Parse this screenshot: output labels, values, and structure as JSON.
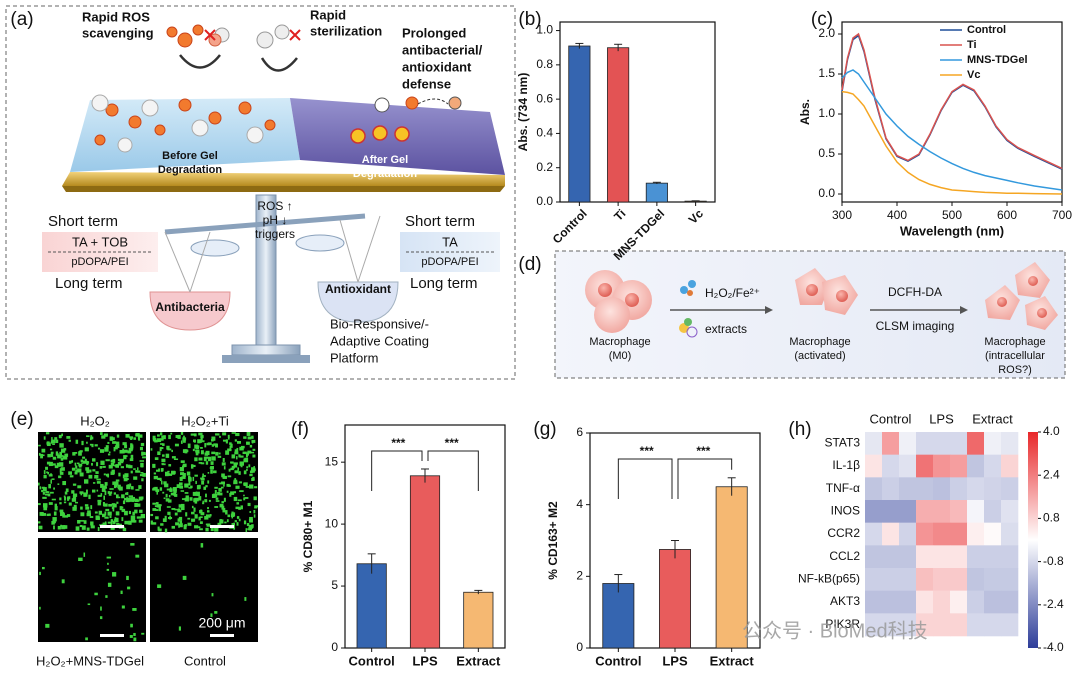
{
  "panel_labels": [
    "(a)",
    "(b)",
    "(c)",
    "(d)",
    "(e)",
    "(f)",
    "(g)",
    "(h)"
  ],
  "panel_a": {
    "top_labels": [
      [
        "Rapid ROS",
        "scavenging"
      ],
      [
        "Rapid",
        "sterilization"
      ],
      [
        "Prolonged",
        "antibacterial/",
        "antioxidant",
        "defense"
      ]
    ],
    "layer_labels": [
      [
        "Before Gel",
        "Degradation"
      ],
      [
        "After Gel",
        "Degradation"
      ]
    ],
    "left_box": {
      "short": "Short term",
      "top": "TA + TOB",
      "bottom": "pDOPA/PEI",
      "long": "Long term"
    },
    "right_box": {
      "short": "Short term",
      "top": "TA",
      "bottom": "pDOPA/PEI",
      "long": "Long term"
    },
    "triggers": [
      "ROS ↑",
      "pH ↓",
      "triggers"
    ],
    "pans": [
      "Antibacteria",
      "Antioxidant"
    ],
    "platform": [
      "Bio-Responsive/-",
      "Adaptive Coating",
      "Platform"
    ]
  },
  "panel_d": {
    "cells": [
      [
        "Macrophage",
        "(M0)"
      ],
      [
        "Macrophage",
        "(activated)"
      ],
      [
        "Macrophage",
        "(intracellular",
        "ROS?)"
      ]
    ],
    "arrow_labels": [
      [
        "H₂O₂/Fe²⁺",
        "extracts"
      ],
      [
        "DCFH-DA",
        "CLSM imaging"
      ]
    ]
  },
  "panel_e": {
    "labels": [
      "H₂O₂",
      "H₂O₂+Ti",
      "H₂O₂+MNS-TDGel",
      "Control"
    ],
    "scale_bar": "200 μm"
  },
  "watermark": "公众号 · BioMed科技",
  "chart_data": [
    {
      "type": "bar",
      "ylabel": "Abs. (734 nm)",
      "categories": [
        "Control",
        "Ti",
        "MNS-TDGel",
        "Vc"
      ],
      "values": [
        0.91,
        0.9,
        0.11,
        0.005
      ],
      "errors": [
        0.015,
        0.02,
        0.005,
        0.002
      ],
      "colors": [
        "#3565b0",
        "#e35354",
        "#4a92d4",
        "#f0a94a"
      ],
      "ylim": [
        0,
        1.05
      ],
      "yticks": [
        {
          "value": 0,
          "label": "0.0"
        },
        0.2,
        0.4,
        0.6,
        0.8,
        {
          "value": 1,
          "label": "1.0"
        }
      ]
    },
    {
      "type": "line",
      "xlabel": "Wavelength (nm)",
      "ylabel": "Abs.",
      "x": [
        300,
        310,
        320,
        330,
        340,
        360,
        380,
        400,
        420,
        440,
        460,
        480,
        500,
        520,
        540,
        560,
        580,
        600,
        620,
        650,
        700
      ],
      "series": [
        {
          "name": "Control",
          "color": "#1f4e9a",
          "values": [
            1.28,
            1.68,
            1.93,
            1.98,
            1.78,
            1.18,
            0.69,
            0.47,
            0.41,
            0.49,
            0.74,
            1.04,
            1.27,
            1.36,
            1.29,
            1.09,
            0.84,
            0.67,
            0.57,
            0.47,
            0.31
          ]
        },
        {
          "name": "Ti",
          "color": "#d9534f",
          "values": [
            1.3,
            1.7,
            1.95,
            2.0,
            1.8,
            1.2,
            0.7,
            0.48,
            0.42,
            0.5,
            0.75,
            1.05,
            1.28,
            1.37,
            1.3,
            1.1,
            0.85,
            0.68,
            0.58,
            0.48,
            0.32
          ]
        },
        {
          "name": "MNS-TDGel",
          "color": "#3399dd",
          "values": [
            1.45,
            1.52,
            1.55,
            1.5,
            1.4,
            1.2,
            1.0,
            0.85,
            0.72,
            0.62,
            0.53,
            0.45,
            0.38,
            0.32,
            0.27,
            0.23,
            0.2,
            0.17,
            0.14,
            0.1,
            0.05
          ]
        },
        {
          "name": "Vc",
          "color": "#f5a623",
          "values": [
            1.28,
            1.27,
            1.25,
            1.18,
            1.1,
            0.85,
            0.6,
            0.4,
            0.27,
            0.18,
            0.12,
            0.08,
            0.05,
            0.04,
            0.03,
            0.02,
            0.015,
            0.01,
            0.01,
            0.005,
            0
          ]
        }
      ],
      "xlim": [
        300,
        700
      ],
      "xticks": [
        300,
        400,
        500,
        600,
        700
      ],
      "ylim": [
        -0.1,
        2.15
      ],
      "yticks": [
        {
          "value": 0,
          "label": "0.0"
        },
        0.5,
        {
          "value": 1,
          "label": "1.0"
        },
        1.5,
        {
          "value": 2,
          "label": "2.0"
        }
      ],
      "legend": "upper right"
    },
    {
      "type": "bar",
      "ylabel": "% CD80+ M1",
      "categories": [
        "Control",
        "LPS",
        "Extract"
      ],
      "values": [
        6.8,
        13.9,
        4.5
      ],
      "errors": [
        0.8,
        0.55,
        0.15
      ],
      "colors": [
        "#3565b0",
        "#e85c5c",
        "#f5b872"
      ],
      "ylim": [
        0,
        18
      ],
      "yticks": [
        0,
        5,
        10,
        15
      ],
      "annotations": [
        "***",
        "***"
      ]
    },
    {
      "type": "bar",
      "ylabel": "% CD163+ M2",
      "categories": [
        "Control",
        "LPS",
        "Extract"
      ],
      "values": [
        1.8,
        2.75,
        4.5
      ],
      "errors": [
        0.25,
        0.25,
        0.25
      ],
      "colors": [
        "#3565b0",
        "#e85c5c",
        "#f5b872"
      ],
      "ylim": [
        0,
        6
      ],
      "yticks": [
        0,
        2,
        4,
        6
      ],
      "annotations": [
        "***",
        "***"
      ]
    },
    {
      "type": "heatmap",
      "groups": [
        "Control",
        "LPS",
        "Extract"
      ],
      "rows": [
        "STAT3",
        "IL-1β",
        "TNF-α",
        "INOS",
        "CCR2",
        "CCL2",
        "NF-kB(p65)",
        "AKT3",
        "PIK3R"
      ],
      "values": [
        [
          -0.5,
          1.8,
          -0.3,
          -0.8,
          -0.8,
          -0.8,
          2.8,
          -0.3,
          -0.5
        ],
        [
          0.5,
          -0.8,
          -0.6,
          2.6,
          2.0,
          1.8,
          -1.2,
          -0.8,
          0.8
        ],
        [
          -1.2,
          -1.0,
          -1.2,
          -1.2,
          -1.3,
          -1.0,
          -0.8,
          -0.9,
          -1.0
        ],
        [
          -2.0,
          -2.0,
          -2.0,
          1.5,
          1.5,
          1.3,
          -0.2,
          -1.0,
          -0.6
        ],
        [
          -0.8,
          0.5,
          -0.9,
          2.0,
          2.2,
          2.2,
          0.3,
          0.1,
          -0.7
        ],
        [
          -1.2,
          -1.2,
          -1.2,
          0.5,
          0.5,
          0.5,
          -1.0,
          -1.0,
          -1.0
        ],
        [
          -1.0,
          -1.0,
          -1.0,
          1.2,
          1.0,
          1.0,
          -1.2,
          -1.1,
          -1.1
        ],
        [
          -1.3,
          -1.3,
          -1.3,
          0.5,
          0.8,
          0.3,
          -1.0,
          -1.3,
          -1.3
        ],
        [
          -0.8,
          -0.8,
          -0.8,
          0.8,
          0.8,
          0.8,
          -0.8,
          -0.8,
          -0.8
        ]
      ],
      "colorscale": [
        "#2d3d99",
        "#ffffff",
        "#e8282a"
      ],
      "zlim": [
        -4,
        4
      ],
      "zticks": [
        {
          "value": 4,
          "label": "4.0"
        },
        2.4,
        0.8,
        -0.8,
        -2.4,
        {
          "value": -4,
          "label": "-4.0"
        }
      ]
    }
  ]
}
